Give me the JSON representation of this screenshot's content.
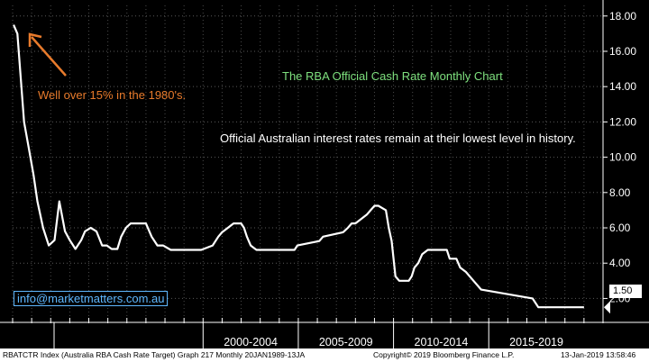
{
  "chart_data": {
    "type": "line",
    "title": "The RBA Official Cash Rate Monthly Chart",
    "annotations": [
      "Official Australian interest rates remain at their lowest level in history.",
      "Well over 15% in the 1980's."
    ],
    "xlabel": "",
    "ylabel": "",
    "x_range": [
      1989.0,
      2020.0
    ],
    "ylim": [
      0.9,
      18.6
    ],
    "y_ticks": [
      2,
      4,
      6,
      8,
      10,
      12,
      14,
      16,
      18
    ],
    "y_tick_labels": [
      "2.00",
      "4.00",
      "6.00",
      "8.00",
      "10.00",
      "12.00",
      "14.00",
      "16.00",
      "18.00"
    ],
    "x_period_labels": [
      {
        "label": "2000-2004",
        "from": 1999.0,
        "to": 2004.0
      },
      {
        "label": "2005-2009",
        "from": 2004.0,
        "to": 2009.0
      },
      {
        "label": "2010-2014",
        "from": 2009.0,
        "to": 2014.0
      },
      {
        "label": "2015-2019",
        "from": 2014.0,
        "to": 2019.0
      }
    ],
    "last_value_label": "1.50",
    "series": [
      {
        "name": "RBA Cash Rate Target",
        "color": "#ffffff",
        "x": [
          1989.05,
          1989.25,
          1989.6,
          1989.85,
          1990.1,
          1990.3,
          1990.6,
          1990.9,
          1991.2,
          1991.45,
          1991.75,
          1992.0,
          1992.3,
          1992.6,
          1992.8,
          1993.1,
          1993.4,
          1993.7,
          1993.95,
          1994.2,
          1994.5,
          1994.7,
          1994.95,
          1995.2,
          1996.0,
          1996.3,
          1996.6,
          1996.9,
          1997.3,
          1997.6,
          1997.9,
          1998.9,
          1999.5,
          1999.8,
          2000.0,
          2000.3,
          2000.6,
          2001.0,
          2001.15,
          2001.3,
          2001.5,
          2001.8,
          2002.3,
          2002.5,
          2003.8,
          2003.95,
          2005.1,
          2005.3,
          2006.35,
          2006.6,
          2006.8,
          2007.0,
          2007.6,
          2007.8,
          2008.0,
          2008.2,
          2008.6,
          2008.75,
          2008.9,
          2009.0,
          2009.1,
          2009.3,
          2009.8,
          2009.95,
          2010.1,
          2010.3,
          2010.5,
          2010.8,
          2011.8,
          2011.95,
          2012.3,
          2012.5,
          2012.8,
          2013.2,
          2013.6,
          2016.3,
          2016.6,
          2018.8,
          2019.0
        ],
        "values": [
          17.5,
          17.0,
          12.0,
          10.5,
          9.0,
          7.5,
          6.0,
          5.0,
          5.3,
          7.5,
          5.8,
          5.3,
          4.8,
          5.3,
          5.8,
          6.0,
          5.8,
          5.0,
          5.0,
          4.8,
          4.8,
          5.5,
          6.0,
          6.25,
          6.25,
          5.5,
          5.0,
          5.0,
          4.75,
          4.75,
          4.75,
          4.75,
          5.0,
          5.5,
          5.75,
          6.0,
          6.25,
          6.25,
          6.0,
          5.5,
          5.0,
          4.75,
          4.75,
          4.75,
          4.75,
          5.0,
          5.25,
          5.5,
          5.75,
          6.0,
          6.25,
          6.25,
          6.75,
          7.0,
          7.25,
          7.25,
          7.0,
          6.0,
          5.25,
          4.25,
          3.25,
          3.0,
          3.0,
          3.25,
          3.75,
          4.0,
          4.5,
          4.75,
          4.75,
          4.25,
          4.25,
          3.75,
          3.5,
          3.0,
          2.5,
          2.0,
          1.5,
          1.5,
          1.5
        ]
      }
    ]
  },
  "labels": {
    "website": "info@marketmatters.com.au"
  },
  "footer": {
    "left": "RBATCTR Index (Australia RBA Cash Rate Target) Graph 217  Monthly 20JAN1989-13JA",
    "copyright": "Copyright© 2019 Bloomberg Finance L.P.",
    "timestamp": "13-Jan-2019 13:58:46"
  },
  "colors": {
    "background": "#000000",
    "line": "#ffffff",
    "title": "#7ee07e",
    "arrow": "#e87b2c",
    "website": "#5fb8ff"
  }
}
